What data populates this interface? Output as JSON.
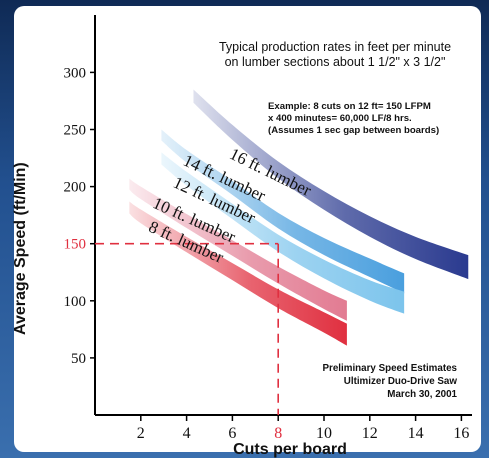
{
  "chart_data": {
    "type": "line",
    "title": "Typical production rates in feet per minute",
    "subtitle": "on lumber sections about 1 1/2\" x 3 1/2\"",
    "xlabel": "Cuts per board",
    "ylabel": "Average Speed (ft/Min)",
    "xlim": [
      0,
      16.5
    ],
    "ylim": [
      0,
      330
    ],
    "x_ticks": [
      "2",
      "4",
      "6",
      "8",
      "10",
      "12",
      "14",
      "16"
    ],
    "y_ticks": [
      "50",
      "100",
      "150",
      "200",
      "250",
      "300"
    ],
    "highlight": {
      "x": 8,
      "y": 150,
      "x_label": "8",
      "y_label": "150",
      "color": "#e03040"
    },
    "example_note": [
      "Example: 8 cuts on 12 ft= 150 LFPM",
      "x 400 minutes= 60,000 LF/8 hrs.",
      "(Assumes 1 sec gap between boards)"
    ],
    "estimate_note": [
      "Preliminary Speed Estimates",
      "Ultimizer Duo-Drive Saw",
      "March 30, 2001"
    ],
    "series": [
      {
        "name": "16 ft. lumber",
        "color": "#2a3a8f",
        "x": [
          4.3,
          6,
          8,
          10,
          12,
          14,
          16.3
        ],
        "y_top": [
          285,
          254,
          222,
          196,
          174,
          156,
          140
        ],
        "thickness": 24
      },
      {
        "name": "14 ft. lumber",
        "color": "#4a9fde",
        "x": [
          2.9,
          4,
          6,
          8,
          10,
          12,
          13.5
        ],
        "y_top": [
          250,
          232,
          205,
          177,
          155,
          137,
          124
        ],
        "thickness": 20
      },
      {
        "name": "12 ft. lumber",
        "color": "#7cc4ec",
        "x": [
          2.9,
          4,
          6,
          8,
          10,
          12,
          13.5
        ],
        "y_top": [
          230,
          213,
          185,
          158,
          136,
          118,
          108
        ],
        "thickness": 22
      },
      {
        "name": "10 ft. lumber",
        "color": "#e27b92",
        "x": [
          1.5,
          2,
          4,
          6,
          8,
          10,
          11
        ],
        "y_top": [
          207,
          200,
          176,
          153,
          130,
          109,
          100
        ],
        "thickness": 20
      },
      {
        "name": "8 ft. lumber",
        "color": "#e03040",
        "x": [
          1.5,
          2,
          4,
          6,
          8,
          10,
          11
        ],
        "y_top": [
          187,
          180,
          156,
          133,
          110,
          90,
          80
        ],
        "thickness": 22
      }
    ]
  }
}
